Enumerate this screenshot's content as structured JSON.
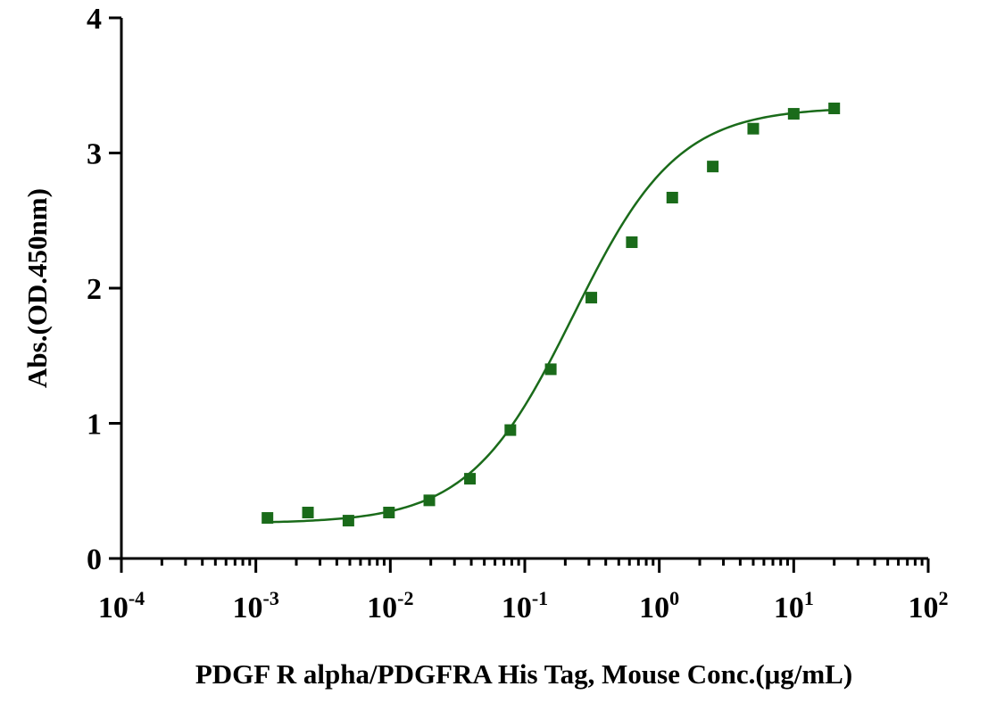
{
  "chart_data": {
    "type": "scatter",
    "xlabel": "PDGF R alpha/PDGFRA His Tag, Mouse Conc.(μg/mL)",
    "ylabel": "Abs.(OD.450nm)",
    "x_scale": "log",
    "xlim": [
      0.0001,
      100
    ],
    "ylim": [
      0,
      4
    ],
    "x_ticks": [
      {
        "base": "10",
        "exp": "-4"
      },
      {
        "base": "10",
        "exp": "-3"
      },
      {
        "base": "10",
        "exp": "-2"
      },
      {
        "base": "10",
        "exp": "-1"
      },
      {
        "base": "10",
        "exp": "0"
      },
      {
        "base": "10",
        "exp": "1"
      },
      {
        "base": "10",
        "exp": "2"
      }
    ],
    "y_ticks": [
      "0",
      "1",
      "2",
      "3",
      "4"
    ],
    "grid": false,
    "legend": "none",
    "series": [
      {
        "marker": "square",
        "color": "#1a6b1a",
        "x": [
          0.00122,
          0.00244,
          0.00488,
          0.00977,
          0.0195,
          0.0391,
          0.0781,
          0.156,
          0.3125,
          0.625,
          1.25,
          2.5,
          5,
          10,
          20
        ],
        "y": [
          0.3,
          0.34,
          0.28,
          0.34,
          0.43,
          0.59,
          0.95,
          1.4,
          1.93,
          2.34,
          2.67,
          2.9,
          3.18,
          3.29,
          3.33
        ]
      }
    ],
    "fit_curve": {
      "model": "4PL",
      "color": "#1a6b1a",
      "bottom": 0.26,
      "top": 3.34,
      "ec50": 0.23,
      "hill": 1.12,
      "x_range": [
        0.00122,
        20
      ]
    }
  }
}
